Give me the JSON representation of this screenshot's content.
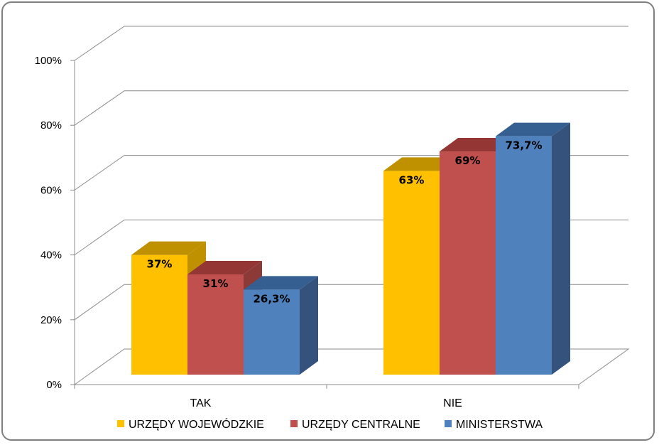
{
  "chart_data": {
    "type": "bar",
    "categories": [
      "TAK",
      "NIE"
    ],
    "series": [
      {
        "name": "URZĘDY WOJEWÓDZKIE",
        "values": [
          37,
          63
        ],
        "labels": [
          "37%",
          "63%"
        ],
        "color": "#ffc000",
        "top": "#bf9000",
        "side": "#bf9000"
      },
      {
        "name": "URZĘDY CENTRALNE",
        "values": [
          31,
          69
        ],
        "labels": [
          "31%",
          "69%"
        ],
        "color": "#c0504d",
        "top": "#943634",
        "side": "#8b3a38"
      },
      {
        "name": "MINISTERSTWA",
        "values": [
          26.3,
          73.7
        ],
        "labels": [
          "26,3%",
          "73,7%"
        ],
        "color": "#4f81bd",
        "top": "#365f91",
        "side": "#34527c"
      }
    ],
    "yticks": [
      "0%",
      "20%",
      "40%",
      "60%",
      "80%",
      "100%"
    ],
    "ylim": [
      0,
      100
    ],
    "grid": true,
    "legend": "bottom",
    "style": "3d-column"
  }
}
